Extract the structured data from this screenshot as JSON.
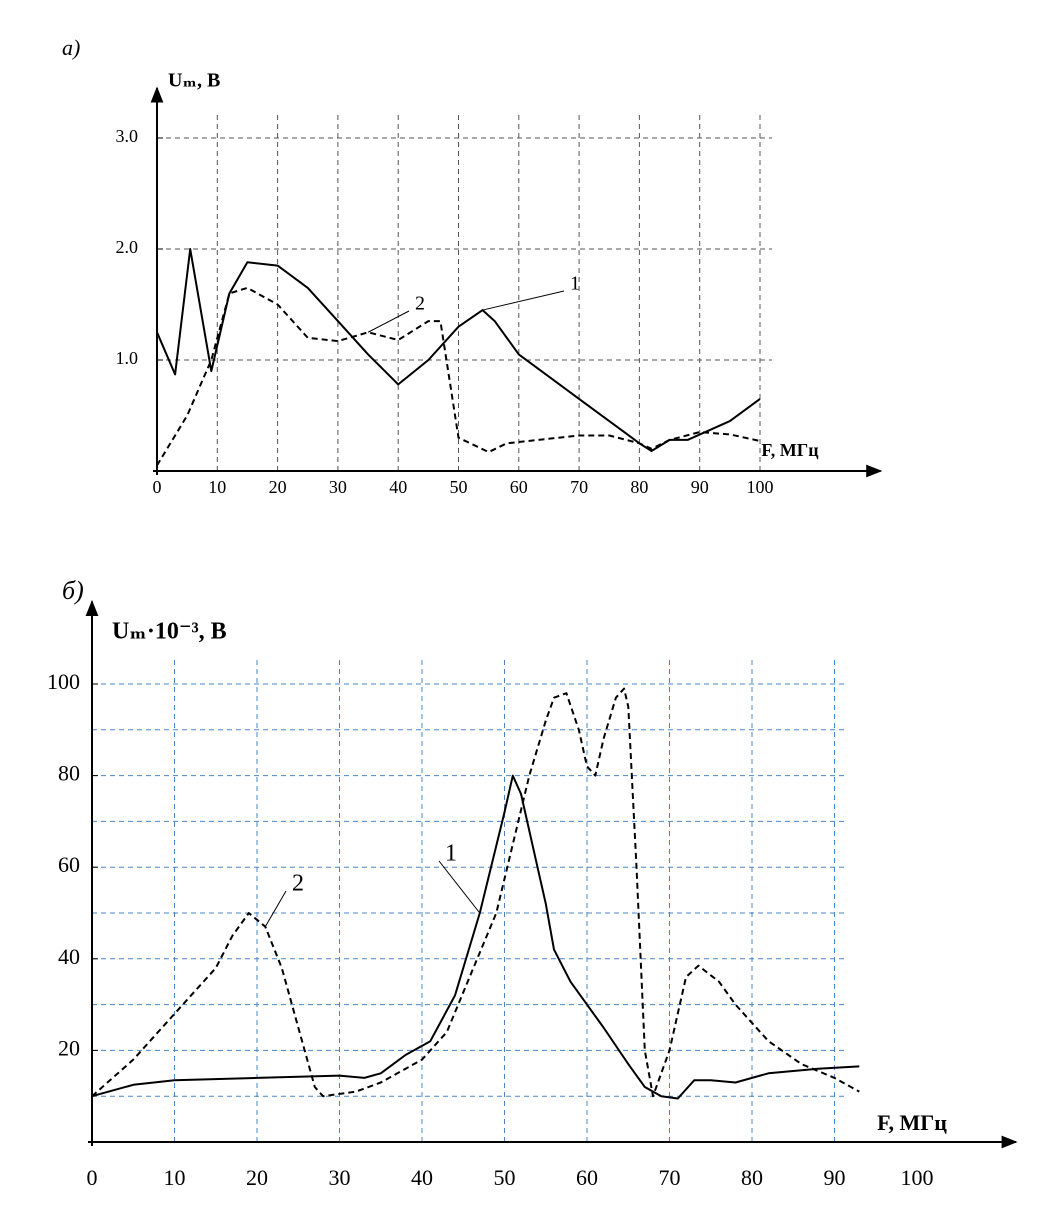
{
  "chart_data": [
    {
      "type": "line",
      "panel": "а)",
      "y_label": "Uₘ, В",
      "x_label": "F, МГц",
      "xlim": [
        0,
        120
      ],
      "ylim": [
        0,
        3.45
      ],
      "xticks": [
        0,
        10,
        20,
        30,
        40,
        50,
        60,
        70,
        80,
        90,
        100
      ],
      "yticks": [
        {
          "value": 1,
          "label": "1.0"
        },
        {
          "value": 2,
          "label": "2.0"
        },
        {
          "value": 3,
          "label": "3.0"
        }
      ],
      "xgrid": [
        10,
        20,
        30,
        40,
        50,
        60,
        70,
        80,
        90,
        100
      ],
      "ygrid": [
        1,
        2,
        3
      ],
      "grid_color": "#555555",
      "series": [
        {
          "name": "1",
          "color": "#000000",
          "style": "solid",
          "x": [
            0,
            3,
            5.5,
            9,
            12,
            15,
            20,
            25,
            30,
            35,
            40,
            45,
            50,
            54,
            56,
            60,
            70,
            80,
            82,
            85,
            88,
            95,
            100
          ],
          "values": [
            1.25,
            0.87,
            2.0,
            0.9,
            1.6,
            1.88,
            1.85,
            1.65,
            1.35,
            1.05,
            0.78,
            1.0,
            1.3,
            1.45,
            1.35,
            1.05,
            0.65,
            0.25,
            0.18,
            0.28,
            0.28,
            0.45,
            0.65
          ]
        },
        {
          "name": "2",
          "color": "#000000",
          "style": "dashed",
          "x": [
            0,
            5,
            9,
            12,
            15,
            20,
            25,
            30,
            35,
            40,
            45,
            47,
            50,
            55,
            58,
            70,
            75,
            80,
            82,
            85,
            90,
            95,
            100
          ],
          "values": [
            0.05,
            0.5,
            1.0,
            1.6,
            1.65,
            1.5,
            1.2,
            1.17,
            1.25,
            1.18,
            1.35,
            1.35,
            0.3,
            0.17,
            0.25,
            0.32,
            0.32,
            0.25,
            0.2,
            0.28,
            0.35,
            0.33,
            0.27
          ]
        }
      ]
    },
    {
      "type": "line",
      "panel": "б)",
      "y_label": "Uₘ·10⁻³, В",
      "x_label": "F, МГц",
      "xlim": [
        0,
        112
      ],
      "ylim": [
        0,
        118
      ],
      "xticks": [
        0,
        10,
        20,
        30,
        40,
        50,
        60,
        70,
        80,
        90,
        100
      ],
      "yticks": [
        20,
        40,
        60,
        80,
        100
      ],
      "xgrid": [
        10,
        20,
        30,
        40,
        50,
        60,
        70,
        80,
        90
      ],
      "ygrid": [
        10,
        20,
        30,
        40,
        50,
        60,
        70,
        80,
        90,
        100
      ],
      "grid_color": "#4a86c5",
      "series": [
        {
          "name": "1",
          "color": "#000000",
          "style": "solid",
          "x": [
            0,
            5,
            10,
            20,
            30,
            33,
            35,
            38,
            41,
            44,
            47,
            50,
            51,
            52,
            54,
            55,
            56,
            58,
            62,
            65,
            67,
            69,
            71,
            73,
            75,
            78,
            82,
            88,
            93
          ],
          "values": [
            10,
            12.5,
            13.5,
            14,
            14.5,
            14,
            15,
            19,
            22,
            32,
            50,
            72,
            80,
            76,
            60,
            52,
            42,
            35,
            25,
            17,
            12,
            10,
            9.5,
            13.5,
            13.5,
            13,
            15,
            16,
            16.5
          ]
        },
        {
          "name": "2",
          "color": "#000000",
          "style": "dashed",
          "x": [
            0,
            5,
            10,
            15,
            17,
            19,
            21,
            23,
            25,
            27,
            28,
            32,
            35,
            40,
            43,
            46,
            49,
            51,
            53,
            55,
            56,
            57.5,
            59,
            60,
            61,
            62,
            63.5,
            64.5,
            65,
            66,
            67,
            68,
            70,
            72,
            73.5,
            76,
            78,
            82,
            86,
            90,
            93
          ],
          "values": [
            10,
            18,
            28,
            38,
            45,
            50,
            47,
            38,
            25,
            12,
            10,
            11,
            13,
            18,
            24,
            37,
            50,
            65,
            80,
            92,
            97,
            98,
            90,
            82,
            80,
            88,
            97,
            99,
            95,
            60,
            20,
            10,
            20,
            36,
            38.5,
            35,
            30,
            22,
            17,
            14,
            11
          ]
        }
      ]
    }
  ]
}
